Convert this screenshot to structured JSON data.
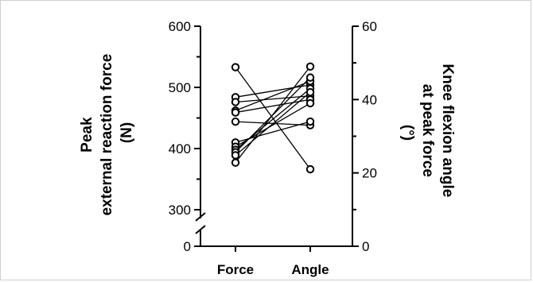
{
  "chart_data": {
    "type": "scatter",
    "categories": [
      "Force",
      "Angle"
    ],
    "left_axis": {
      "title_lines": [
        "Peak",
        "external reaction force",
        "(N)"
      ],
      "ticks_upper": [
        300,
        400,
        500,
        600
      ],
      "ticks_lower": [
        0
      ],
      "ylim": [
        300,
        600
      ],
      "broken": true
    },
    "right_axis": {
      "title_lines": [
        "Knee flexion angle",
        "at peak force",
        "(°)"
      ],
      "ticks": [
        0,
        20,
        40,
        60
      ],
      "ylim": [
        0,
        60
      ]
    },
    "pairs": [
      {
        "force": 533,
        "angle": 21
      },
      {
        "force": 484,
        "angle": 44
      },
      {
        "force": 476,
        "angle": 41
      },
      {
        "force": 462,
        "angle": 45
      },
      {
        "force": 459,
        "angle": 40
      },
      {
        "force": 444,
        "angle": 33
      },
      {
        "force": 410,
        "angle": 34
      },
      {
        "force": 403,
        "angle": 39
      },
      {
        "force": 398,
        "angle": 43
      },
      {
        "force": 394,
        "angle": 46
      },
      {
        "force": 389,
        "angle": 42
      },
      {
        "force": 377,
        "angle": 49
      }
    ],
    "grid": false,
    "legend": "none"
  }
}
